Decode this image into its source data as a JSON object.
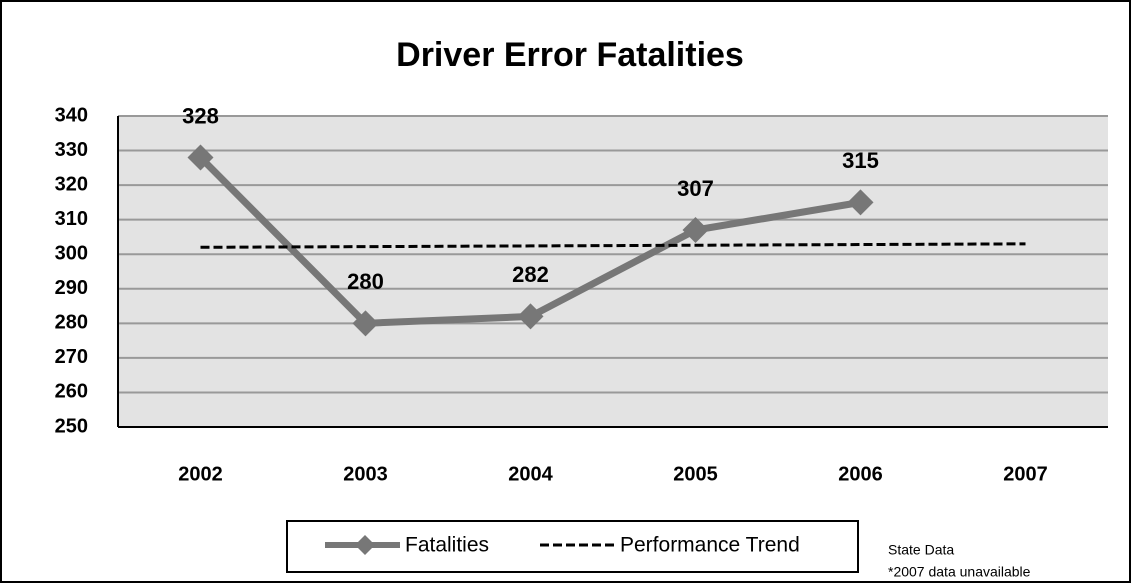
{
  "chart_data": {
    "type": "line",
    "title": "Driver Error Fatalities",
    "categories": [
      "2002",
      "2003",
      "2004",
      "2005",
      "2006",
      "2007"
    ],
    "series": [
      {
        "name": "Fatalities",
        "color": "#777777",
        "values": [
          328,
          280,
          282,
          307,
          315,
          null
        ]
      },
      {
        "name": "Performance Trend",
        "color": "#000000",
        "values": [
          302,
          302.2,
          302.4,
          302.6,
          302.8,
          303
        ]
      }
    ],
    "ylim": [
      250,
      340
    ],
    "yticks": [
      250,
      260,
      270,
      280,
      290,
      300,
      310,
      320,
      330,
      340
    ],
    "grid": true,
    "notes": [
      "State Data",
      "*2007 data unavailable"
    ]
  }
}
